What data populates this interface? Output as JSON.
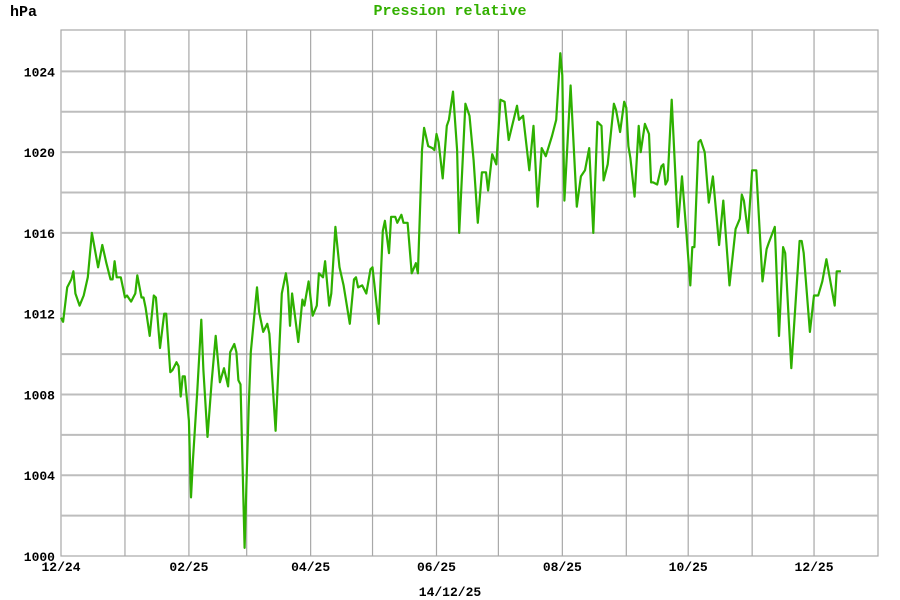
{
  "chart_data": {
    "type": "line",
    "title": "Pression relative",
    "ylabel": "hPa",
    "xlabel": "14/12/25",
    "ylim": [
      1000,
      1026
    ],
    "xlim": [
      "2024-12-01",
      "2026-01-01"
    ],
    "grid": true,
    "y_ticks": [
      1000,
      1004,
      1008,
      1012,
      1016,
      1020,
      1024
    ],
    "y_grid_step": 2,
    "x_tick_labels": [
      {
        "date": "2024-12-01",
        "label": "12/24"
      },
      {
        "date": "2025-02-01",
        "label": "02/25"
      },
      {
        "date": "2025-04-01",
        "label": "04/25"
      },
      {
        "date": "2025-06-01",
        "label": "06/25"
      },
      {
        "date": "2025-08-01",
        "label": "08/25"
      },
      {
        "date": "2025-10-01",
        "label": "10/25"
      },
      {
        "date": "2025-12-01",
        "label": "12/25"
      }
    ],
    "x_grid": "monthly",
    "colors": {
      "line": "#2eb000",
      "title": "#33b000",
      "grid": "#b0b0b0"
    },
    "series": [
      {
        "points": [
          [
            "2024-12-01",
            1011.8
          ],
          [
            "2024-12-02",
            1011.6
          ],
          [
            "2024-12-04",
            1013.3
          ],
          [
            "2024-12-06",
            1013.7
          ],
          [
            "2024-12-07",
            1014.1
          ],
          [
            "2024-12-08",
            1013.0
          ],
          [
            "2024-12-10",
            1012.4
          ],
          [
            "2024-12-12",
            1012.9
          ],
          [
            "2024-12-14",
            1013.8
          ],
          [
            "2024-12-16",
            1016.0
          ],
          [
            "2024-12-19",
            1014.3
          ],
          [
            "2024-12-21",
            1015.4
          ],
          [
            "2024-12-23",
            1014.5
          ],
          [
            "2024-12-25",
            1013.7
          ],
          [
            "2024-12-26",
            1013.7
          ],
          [
            "2024-12-27",
            1014.6
          ],
          [
            "2024-12-28",
            1013.8
          ],
          [
            "2024-12-30",
            1013.8
          ],
          [
            "2025-01-01",
            1012.8
          ],
          [
            "2025-01-02",
            1012.9
          ],
          [
            "2025-01-04",
            1012.6
          ],
          [
            "2025-01-06",
            1013.0
          ],
          [
            "2025-01-07",
            1013.9
          ],
          [
            "2025-01-09",
            1012.8
          ],
          [
            "2025-01-10",
            1012.8
          ],
          [
            "2025-01-11",
            1012.3
          ],
          [
            "2025-01-13",
            1010.9
          ],
          [
            "2025-01-15",
            1012.9
          ],
          [
            "2025-01-16",
            1012.8
          ],
          [
            "2025-01-18",
            1010.3
          ],
          [
            "2025-01-20",
            1012.0
          ],
          [
            "2025-01-21",
            1012.0
          ],
          [
            "2025-01-23",
            1009.1
          ],
          [
            "2025-01-24",
            1009.2
          ],
          [
            "2025-01-26",
            1009.6
          ],
          [
            "2025-01-27",
            1009.4
          ],
          [
            "2025-01-28",
            1007.9
          ],
          [
            "2025-01-29",
            1008.9
          ],
          [
            "2025-01-30",
            1008.9
          ],
          [
            "2025-02-01",
            1006.7
          ],
          [
            "2025-02-02",
            1002.9
          ],
          [
            "2025-02-03",
            1004.8
          ],
          [
            "2025-02-05",
            1008.1
          ],
          [
            "2025-02-07",
            1011.7
          ],
          [
            "2025-02-08",
            1009.2
          ],
          [
            "2025-02-10",
            1005.9
          ],
          [
            "2025-02-12",
            1008.6
          ],
          [
            "2025-02-14",
            1010.9
          ],
          [
            "2025-02-16",
            1008.6
          ],
          [
            "2025-02-18",
            1009.3
          ],
          [
            "2025-02-20",
            1008.4
          ],
          [
            "2025-02-21",
            1010.1
          ],
          [
            "2025-02-23",
            1010.5
          ],
          [
            "2025-02-24",
            1010.1
          ],
          [
            "2025-02-25",
            1008.7
          ],
          [
            "2025-02-26",
            1008.5
          ],
          [
            "2025-02-27",
            1004.4
          ],
          [
            "2025-02-28",
            1000.4
          ],
          [
            "2025-03-02",
            1007.4
          ],
          [
            "2025-03-03",
            1010.1
          ],
          [
            "2025-03-06",
            1013.3
          ],
          [
            "2025-03-07",
            1012.1
          ],
          [
            "2025-03-09",
            1011.1
          ],
          [
            "2025-03-11",
            1011.5
          ],
          [
            "2025-03-12",
            1011.0
          ],
          [
            "2025-03-15",
            1006.2
          ],
          [
            "2025-03-18",
            1013.0
          ],
          [
            "2025-03-20",
            1014.0
          ],
          [
            "2025-03-21",
            1013.3
          ],
          [
            "2025-03-22",
            1011.4
          ],
          [
            "2025-03-23",
            1013.0
          ],
          [
            "2025-03-26",
            1010.6
          ],
          [
            "2025-03-28",
            1012.7
          ],
          [
            "2025-03-29",
            1012.4
          ],
          [
            "2025-03-31",
            1013.6
          ],
          [
            "2025-04-02",
            1011.9
          ],
          [
            "2025-04-04",
            1012.4
          ],
          [
            "2025-04-05",
            1014.0
          ],
          [
            "2025-04-07",
            1013.8
          ],
          [
            "2025-04-08",
            1014.6
          ],
          [
            "2025-04-10",
            1012.4
          ],
          [
            "2025-04-11",
            1013.0
          ],
          [
            "2025-04-13",
            1016.3
          ],
          [
            "2025-04-15",
            1014.3
          ],
          [
            "2025-04-17",
            1013.4
          ],
          [
            "2025-04-20",
            1011.5
          ],
          [
            "2025-04-22",
            1013.7
          ],
          [
            "2025-04-23",
            1013.8
          ],
          [
            "2025-04-24",
            1013.3
          ],
          [
            "2025-04-26",
            1013.4
          ],
          [
            "2025-04-28",
            1013.0
          ],
          [
            "2025-04-30",
            1014.2
          ],
          [
            "2025-05-01",
            1014.3
          ],
          [
            "2025-05-04",
            1011.5
          ],
          [
            "2025-05-06",
            1016.1
          ],
          [
            "2025-05-07",
            1016.6
          ],
          [
            "2025-05-09",
            1015.0
          ],
          [
            "2025-05-10",
            1016.8
          ],
          [
            "2025-05-12",
            1016.8
          ],
          [
            "2025-05-13",
            1016.5
          ],
          [
            "2025-05-15",
            1016.9
          ],
          [
            "2025-05-16",
            1016.5
          ],
          [
            "2025-05-18",
            1016.5
          ],
          [
            "2025-05-20",
            1014.0
          ],
          [
            "2025-05-22",
            1014.5
          ],
          [
            "2025-05-23",
            1014.0
          ],
          [
            "2025-05-25",
            1020.1
          ],
          [
            "2025-05-26",
            1021.2
          ],
          [
            "2025-05-28",
            1020.3
          ],
          [
            "2025-05-30",
            1020.2
          ],
          [
            "2025-05-31",
            1020.1
          ],
          [
            "2025-06-01",
            1020.9
          ],
          [
            "2025-06-02",
            1020.5
          ],
          [
            "2025-06-04",
            1018.7
          ],
          [
            "2025-06-06",
            1021.3
          ],
          [
            "2025-06-07",
            1021.6
          ],
          [
            "2025-06-09",
            1023.0
          ],
          [
            "2025-06-11",
            1020.1
          ],
          [
            "2025-06-12",
            1016.0
          ],
          [
            "2025-06-15",
            1022.4
          ],
          [
            "2025-06-17",
            1021.8
          ],
          [
            "2025-06-19",
            1019.6
          ],
          [
            "2025-06-21",
            1016.5
          ],
          [
            "2025-06-23",
            1019.0
          ],
          [
            "2025-06-25",
            1019.0
          ],
          [
            "2025-06-26",
            1018.1
          ],
          [
            "2025-06-28",
            1019.9
          ],
          [
            "2025-06-30",
            1019.4
          ],
          [
            "2025-07-02",
            1022.6
          ],
          [
            "2025-07-04",
            1022.5
          ],
          [
            "2025-07-06",
            1020.6
          ],
          [
            "2025-07-10",
            1022.3
          ],
          [
            "2025-07-11",
            1021.6
          ],
          [
            "2025-07-13",
            1021.8
          ],
          [
            "2025-07-16",
            1019.1
          ],
          [
            "2025-07-18",
            1021.3
          ],
          [
            "2025-07-20",
            1017.3
          ],
          [
            "2025-07-22",
            1020.2
          ],
          [
            "2025-07-24",
            1019.8
          ],
          [
            "2025-07-27",
            1020.8
          ],
          [
            "2025-07-29",
            1021.6
          ],
          [
            "2025-07-31",
            1024.9
          ],
          [
            "2025-08-01",
            1023.8
          ],
          [
            "2025-08-02",
            1017.6
          ],
          [
            "2025-08-05",
            1023.3
          ],
          [
            "2025-08-08",
            1017.3
          ],
          [
            "2025-08-10",
            1018.8
          ],
          [
            "2025-08-12",
            1019.1
          ],
          [
            "2025-08-14",
            1020.2
          ],
          [
            "2025-08-16",
            1016.0
          ],
          [
            "2025-08-18",
            1021.5
          ],
          [
            "2025-08-20",
            1021.3
          ],
          [
            "2025-08-21",
            1018.6
          ],
          [
            "2025-08-23",
            1019.4
          ],
          [
            "2025-08-26",
            1022.4
          ],
          [
            "2025-08-27",
            1022.1
          ],
          [
            "2025-08-29",
            1021.0
          ],
          [
            "2025-08-31",
            1022.5
          ],
          [
            "2025-09-01",
            1022.2
          ],
          [
            "2025-09-02",
            1020.3
          ],
          [
            "2025-09-03",
            1019.7
          ],
          [
            "2025-09-05",
            1017.8
          ],
          [
            "2025-09-07",
            1021.3
          ],
          [
            "2025-09-08",
            1020.0
          ],
          [
            "2025-09-10",
            1021.4
          ],
          [
            "2025-09-12",
            1020.9
          ],
          [
            "2025-09-13",
            1018.5
          ],
          [
            "2025-09-14",
            1018.5
          ],
          [
            "2025-09-16",
            1018.4
          ],
          [
            "2025-09-18",
            1019.3
          ],
          [
            "2025-09-19",
            1019.4
          ],
          [
            "2025-09-20",
            1018.4
          ],
          [
            "2025-09-21",
            1018.6
          ],
          [
            "2025-09-23",
            1022.6
          ],
          [
            "2025-09-26",
            1016.3
          ],
          [
            "2025-09-28",
            1018.8
          ],
          [
            "2025-09-30",
            1016.2
          ],
          [
            "2025-10-02",
            1013.4
          ],
          [
            "2025-10-03",
            1015.3
          ],
          [
            "2025-10-04",
            1015.3
          ],
          [
            "2025-10-06",
            1020.5
          ],
          [
            "2025-10-07",
            1020.6
          ],
          [
            "2025-10-09",
            1020.0
          ],
          [
            "2025-10-11",
            1017.5
          ],
          [
            "2025-10-13",
            1018.8
          ],
          [
            "2025-10-16",
            1015.4
          ],
          [
            "2025-10-18",
            1017.6
          ],
          [
            "2025-10-21",
            1013.4
          ],
          [
            "2025-10-24",
            1016.2
          ],
          [
            "2025-10-26",
            1016.7
          ],
          [
            "2025-10-27",
            1017.9
          ],
          [
            "2025-10-28",
            1017.6
          ],
          [
            "2025-10-30",
            1016.0
          ],
          [
            "2025-11-01",
            1019.1
          ],
          [
            "2025-11-03",
            1019.1
          ],
          [
            "2025-11-06",
            1013.6
          ],
          [
            "2025-11-08",
            1015.2
          ],
          [
            "2025-11-09",
            1015.5
          ],
          [
            "2025-11-12",
            1016.3
          ],
          [
            "2025-11-14",
            1010.9
          ],
          [
            "2025-11-16",
            1015.3
          ],
          [
            "2025-11-17",
            1015.0
          ],
          [
            "2025-11-20",
            1009.3
          ],
          [
            "2025-11-24",
            1015.6
          ],
          [
            "2025-11-25",
            1015.6
          ],
          [
            "2025-11-26",
            1015.0
          ],
          [
            "2025-11-29",
            1011.1
          ],
          [
            "2025-12-01",
            1012.9
          ],
          [
            "2025-12-03",
            1012.9
          ],
          [
            "2025-12-05",
            1013.6
          ],
          [
            "2025-12-07",
            1014.7
          ],
          [
            "2025-12-11",
            1012.4
          ],
          [
            "2025-12-12",
            1014.1
          ],
          [
            "2025-12-14",
            1014.1
          ]
        ]
      }
    ]
  }
}
